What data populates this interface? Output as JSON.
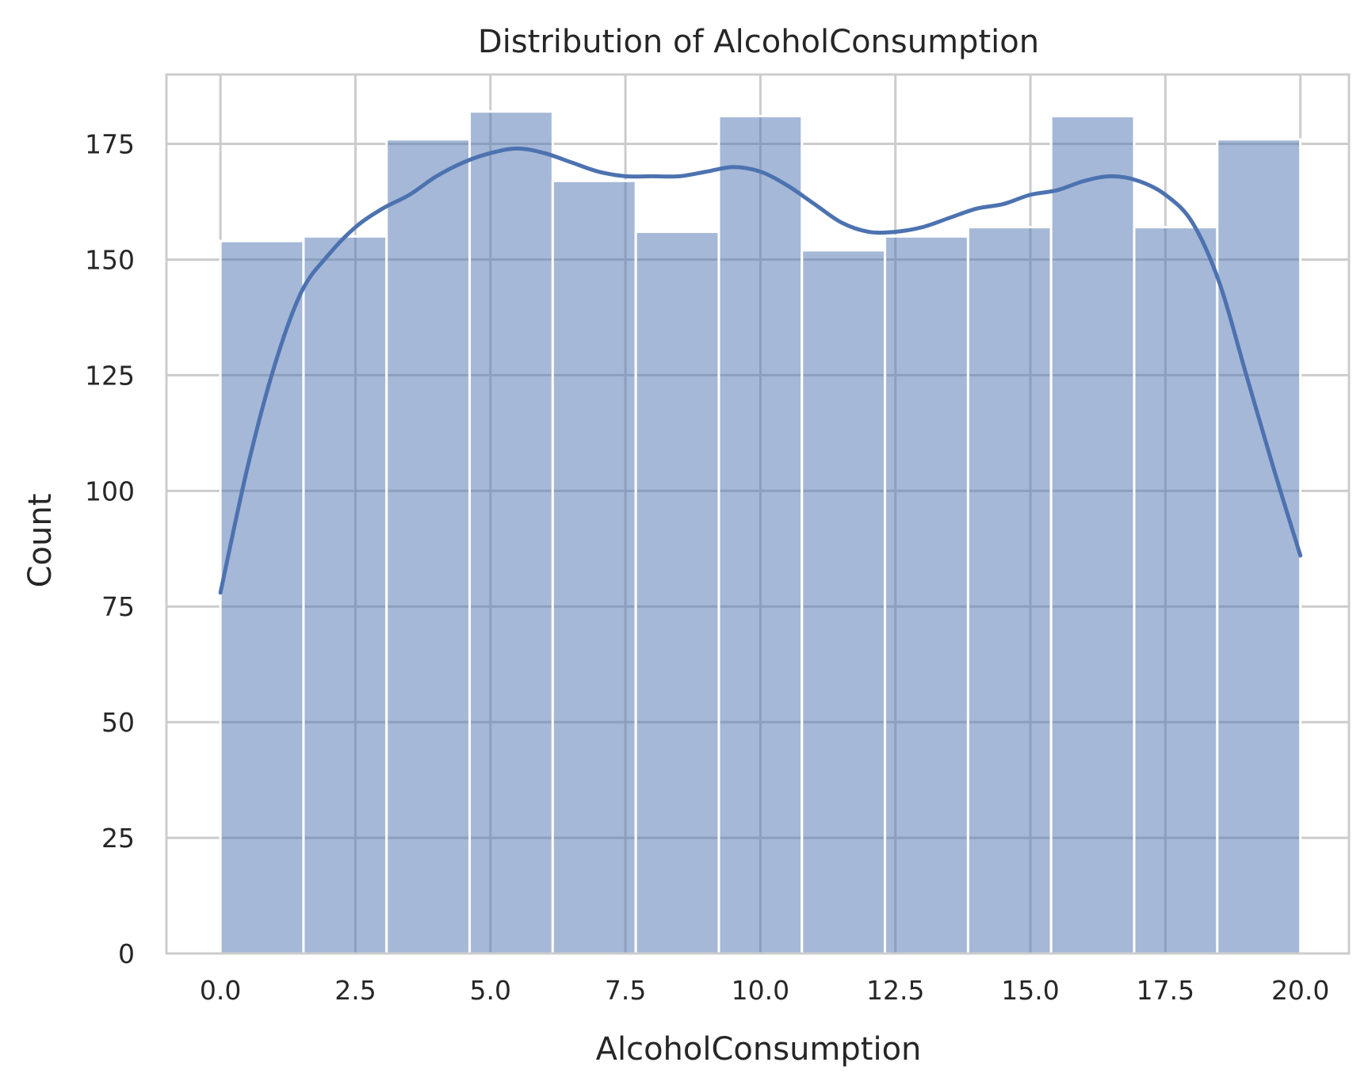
{
  "chart_data": {
    "type": "bar",
    "title": "Distribution of AlcoholConsumption",
    "xlabel": "AlcoholConsumption",
    "ylabel": "Count",
    "xlim": [
      -1.0,
      20.9
    ],
    "ylim": [
      0,
      190
    ],
    "xticks": [
      0.0,
      2.5,
      5.0,
      7.5,
      10.0,
      12.5,
      15.0,
      17.5,
      20.0
    ],
    "xtick_labels": [
      "0.0",
      "2.5",
      "5.0",
      "7.5",
      "10.0",
      "12.5",
      "15.0",
      "17.5",
      "20.0"
    ],
    "yticks": [
      0,
      25,
      50,
      75,
      100,
      125,
      150,
      175
    ],
    "ytick_labels": [
      "0",
      "25",
      "50",
      "75",
      "100",
      "125",
      "150",
      "175"
    ],
    "bins": {
      "start": 0.0,
      "width": 1.5384,
      "counts": [
        154,
        155,
        176,
        182,
        167,
        156,
        181,
        152,
        155,
        157,
        181,
        157,
        176
      ]
    },
    "kde": {
      "x": [
        0.0,
        0.5,
        1.0,
        1.5,
        2.0,
        2.5,
        3.0,
        3.5,
        4.0,
        4.5,
        5.0,
        5.5,
        6.0,
        6.5,
        7.0,
        7.5,
        8.0,
        8.5,
        9.0,
        9.5,
        10.0,
        10.5,
        11.0,
        11.5,
        12.0,
        12.5,
        13.0,
        13.5,
        14.0,
        14.5,
        15.0,
        15.5,
        16.0,
        16.5,
        17.0,
        17.5,
        18.0,
        18.5,
        19.0,
        19.5,
        20.0
      ],
      "y": [
        78,
        105,
        127,
        143,
        151,
        157,
        161,
        164,
        168,
        171,
        173,
        174,
        173,
        171,
        169,
        168,
        168,
        168,
        169,
        170,
        169,
        166,
        162,
        158,
        156,
        156,
        157,
        159,
        161,
        162,
        164,
        165,
        167,
        168,
        167,
        164,
        158,
        145,
        125,
        105,
        86
      ]
    },
    "grid": true,
    "legend": false,
    "colors": {
      "bar_fill": "#4c72b0",
      "bar_fill_opacity": 0.5,
      "kde_line": "#4c72b0",
      "grid": "#cccccc",
      "spine": "#cccccc",
      "text": "#262626"
    }
  }
}
